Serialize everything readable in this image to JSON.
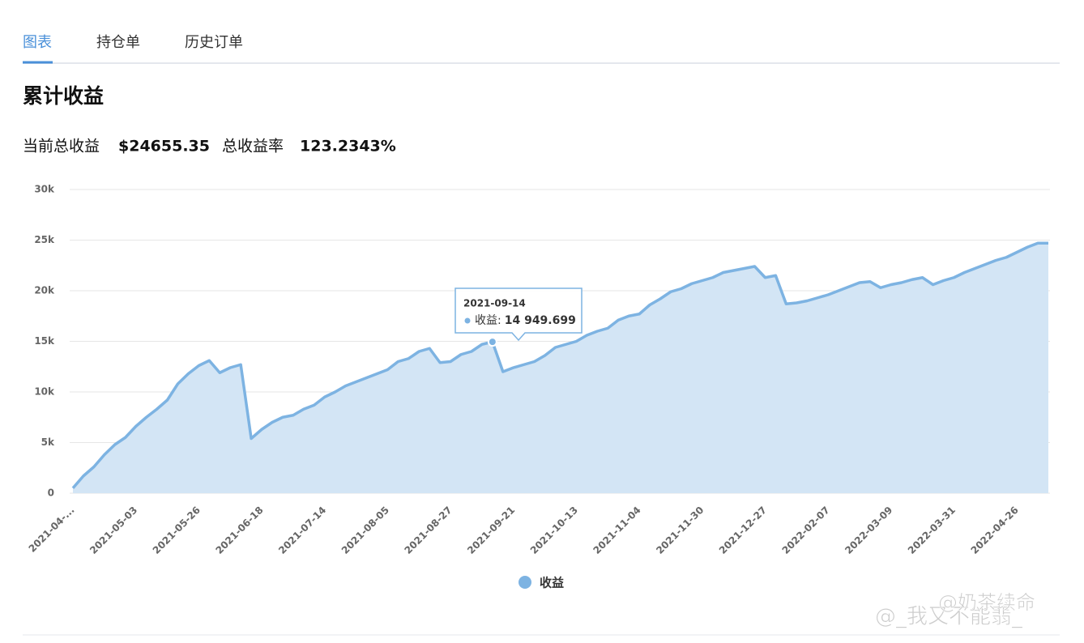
{
  "tabs": [
    "图表",
    "持仓单",
    "历史订单"
  ],
  "section_title": "累计收益",
  "stats": [
    {
      "label": "当前总收益",
      "value": "$24655.35"
    },
    {
      "label": "总收益率",
      "value": "123.2343%"
    }
  ],
  "watermark": [
    "@_我又不能翡_",
    "@奶茶续命"
  ],
  "chart_data": {
    "type": "area",
    "categories": [
      "2021-04-...",
      null,
      null,
      null,
      null,
      null,
      "2021-05-03",
      null,
      null,
      null,
      null,
      null,
      "2021-05-26",
      null,
      null,
      null,
      null,
      null,
      "2021-06-18",
      null,
      null,
      null,
      null,
      null,
      "2021-07-14",
      null,
      null,
      null,
      null,
      null,
      "2021-08-05",
      null,
      null,
      null,
      null,
      null,
      "2021-08-27",
      null,
      null,
      null,
      null,
      null,
      "2021-09-21",
      null,
      null,
      null,
      null,
      null,
      "2021-10-13",
      null,
      null,
      null,
      null,
      null,
      "2021-11-04",
      null,
      null,
      null,
      null,
      null,
      "2021-11-30",
      null,
      null,
      null,
      null,
      null,
      "2021-12-27",
      null,
      null,
      null,
      null,
      null,
      "2022-02-07",
      null,
      null,
      null,
      null,
      null,
      "2022-03-09",
      null,
      null,
      null,
      null,
      null,
      "2022-03-31",
      null,
      null,
      null,
      null,
      null,
      "2022-04-26",
      null,
      null,
      null
    ],
    "series": [
      {
        "name": "收益",
        "color": "#7db3e2",
        "fill": "#d3e5f5",
        "values": [
          500,
          1700,
          2600,
          3800,
          4800,
          5500,
          6600,
          7500,
          8300,
          9200,
          10800,
          11800,
          12600,
          13100,
          11900,
          12400,
          12700,
          5400,
          6300,
          7000,
          7500,
          7700,
          8300,
          8700,
          9500,
          10000,
          10600,
          11000,
          11400,
          11800,
          12200,
          13000,
          13300,
          14000,
          14300,
          12900,
          13000,
          13700,
          14000,
          14700,
          14949.699,
          12000,
          12400,
          12700,
          13000,
          13600,
          14400,
          14700,
          15000,
          15600,
          16000,
          16300,
          17100,
          17500,
          17700,
          18600,
          19200,
          19900,
          20200,
          20700,
          21000,
          21300,
          21800,
          22000,
          22200,
          22400,
          21300,
          21500,
          18700,
          18800,
          19000,
          19300,
          19600,
          20000,
          20400,
          20800,
          20900,
          20300,
          20600,
          20800,
          21100,
          21300,
          20600,
          21000,
          21300,
          21800,
          22200,
          22600,
          23000,
          23300,
          23800,
          24300,
          24700,
          24700
        ]
      }
    ],
    "ylim": [
      0,
      30000
    ],
    "yticks": [
      0,
      {
        "value": 5000,
        "label": "5k"
      },
      {
        "value": 10000,
        "label": "10k"
      },
      {
        "value": 15000,
        "label": "15k"
      },
      {
        "value": 20000,
        "label": "20k"
      },
      {
        "value": 25000,
        "label": "25k"
      },
      {
        "value": 30000,
        "label": "30k"
      }
    ],
    "grid": true,
    "legend": "bottom",
    "tooltip": {
      "x": "2021-09-14",
      "value": 14949.699,
      "label": "收益:",
      "value_label": "14 949.699"
    }
  }
}
